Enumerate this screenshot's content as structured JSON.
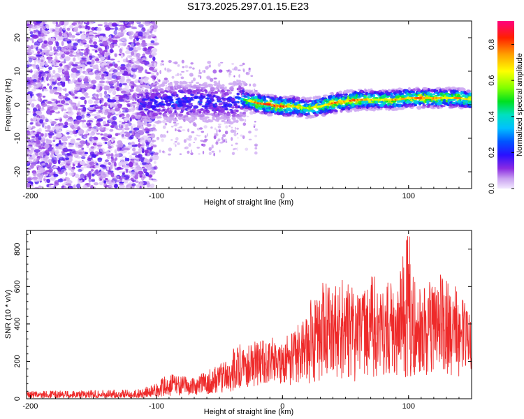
{
  "chart_data": [
    {
      "type": "heatmap",
      "title": "S173.2025.297.01.15.E23",
      "xlabel": "Height of straight line (km)",
      "ylabel": "Frequency (Hz)",
      "xlim": [
        -203,
        150
      ],
      "ylim": [
        -25,
        25
      ],
      "xticks": [
        -200,
        -100,
        0,
        100
      ],
      "xtick_labels": [
        "-200",
        "-100",
        "0",
        "100"
      ],
      "yticks": [
        -20,
        -10,
        0,
        10,
        20
      ],
      "ytick_labels": [
        "-20",
        "-10",
        "0",
        "10",
        "20"
      ],
      "colorbar": {
        "label": "Normalized spectral amplitude",
        "range": [
          0,
          0.93
        ],
        "ticks": [
          0.0,
          0.2,
          0.4,
          0.6,
          0.8
        ],
        "tick_labels": [
          "0.0",
          "0.2",
          "0.4",
          "0.6",
          "0.8"
        ],
        "colormap": "rainbow"
      },
      "ridge": {
        "description": "dominant frequency trace",
        "x": [
          -115,
          -100,
          -80,
          -60,
          -40,
          -30,
          -20,
          -10,
          0,
          10,
          20,
          30,
          40,
          50,
          60,
          70,
          80,
          90,
          100,
          110,
          120,
          130,
          140,
          150
        ],
        "y": [
          0,
          0.5,
          1,
          1,
          0.5,
          1.5,
          0.5,
          0,
          -0.5,
          -0.5,
          -1,
          -0.5,
          0.5,
          1,
          1.5,
          1.5,
          1.5,
          1.5,
          2,
          2,
          2,
          2,
          2,
          1.5
        ],
        "amplitude": [
          0.3,
          0.35,
          0.35,
          0.35,
          0.3,
          0.5,
          0.8,
          0.85,
          0.85,
          0.7,
          0.6,
          0.7,
          0.8,
          0.75,
          0.8,
          0.7,
          0.7,
          0.75,
          0.7,
          0.8,
          0.75,
          0.7,
          0.75,
          0.7
        ]
      }
    },
    {
      "type": "line",
      "xlabel": "Height of straight line (km)",
      "ylabel": "SNR (10 * v/v)",
      "xlim": [
        -203,
        150
      ],
      "ylim": [
        0,
        900
      ],
      "xticks": [
        -200,
        -100,
        0,
        100
      ],
      "xtick_labels": [
        "-200",
        "-100",
        "0",
        "100"
      ],
      "yticks": [
        0,
        200,
        400,
        600,
        800
      ],
      "ytick_labels": [
        "0",
        "200",
        "400",
        "600",
        "800"
      ],
      "color": "#ee2a2a",
      "envelope": {
        "x": [
          -203,
          -150,
          -115,
          -100,
          -90,
          -80,
          -70,
          -60,
          -50,
          -40,
          -30,
          -20,
          -10,
          0,
          10,
          20,
          30,
          40,
          50,
          60,
          70,
          80,
          90,
          100,
          110,
          120,
          130,
          140,
          150
        ],
        "base": [
          5,
          5,
          5,
          10,
          15,
          20,
          20,
          25,
          30,
          40,
          60,
          70,
          90,
          80,
          70,
          80,
          100,
          120,
          100,
          90,
          110,
          130,
          120,
          110,
          120,
          140,
          130,
          120,
          150
        ],
        "peak": [
          40,
          45,
          50,
          80,
          140,
          120,
          110,
          150,
          190,
          260,
          330,
          300,
          330,
          320,
          380,
          500,
          650,
          600,
          650,
          560,
          660,
          640,
          600,
          890,
          590,
          690,
          640,
          590,
          420
        ]
      }
    }
  ],
  "colors": {
    "accent": "#8a2be2",
    "line": "#ee2a2a"
  }
}
